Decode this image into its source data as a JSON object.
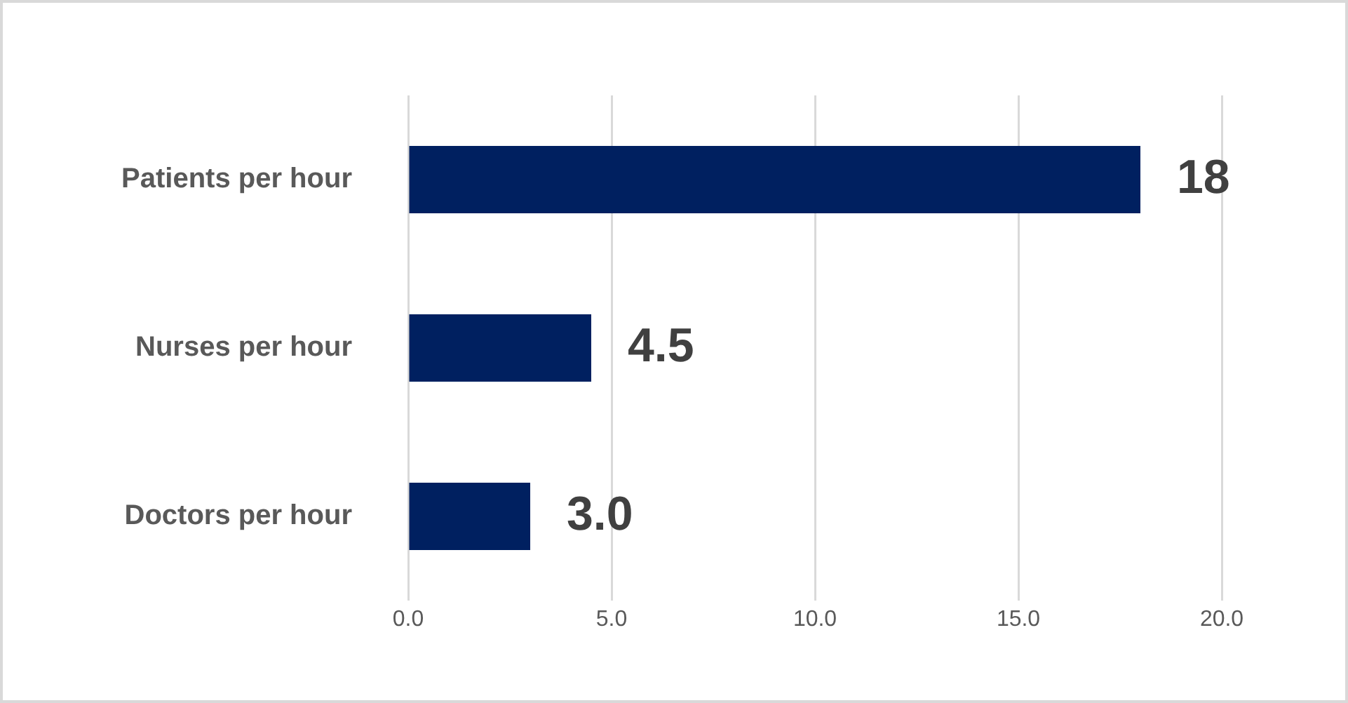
{
  "chart_data": {
    "type": "bar",
    "orientation": "horizontal",
    "categories": [
      "Patients per hour",
      "Nurses per hour",
      "Doctors per hour"
    ],
    "values": [
      18,
      4.5,
      3.0
    ],
    "value_labels": [
      "18",
      "4.5",
      "3.0"
    ],
    "color": "#002060",
    "xlim": [
      0,
      20
    ],
    "xticks": [
      {
        "value": 0,
        "label": "0.0"
      },
      {
        "value": 5,
        "label": "5.0"
      },
      {
        "value": 10,
        "label": "10.0"
      },
      {
        "value": 15,
        "label": "15.0"
      },
      {
        "value": 20,
        "label": "20.0"
      }
    ],
    "grid": "x"
  }
}
